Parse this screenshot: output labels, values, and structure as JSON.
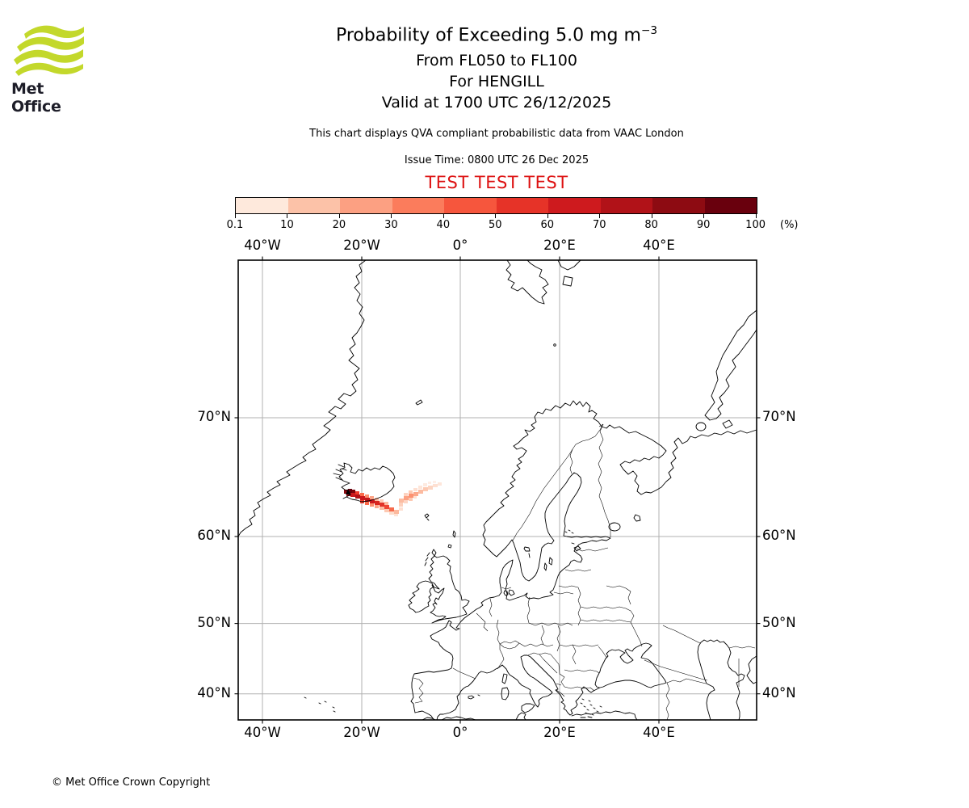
{
  "logo": {
    "brand": "Met Office",
    "wave_color": "#c3d82b",
    "text_color": "#1d1d28"
  },
  "header": {
    "title_main": "Probability of Exceeding 5.0 mg m",
    "title_sup": "−3",
    "subtitle_lines": [
      "From FL050 to FL100",
      "For HENGILL",
      "Valid at 1700 UTC 26/12/2025"
    ],
    "description": "This chart displays QVA compliant probabilistic data from VAAC London",
    "issue_time": "Issue Time: 0800 UTC 26 Dec 2025",
    "test_banner": "TEST TEST TEST",
    "test_color": "#dd1111"
  },
  "colorbar": {
    "tick_labels": [
      "0.1",
      "10",
      "20",
      "30",
      "40",
      "50",
      "60",
      "70",
      "80",
      "90",
      "100"
    ],
    "unit": "(%)",
    "colors": [
      "#fee9dc",
      "#fcc2a8",
      "#fca082",
      "#fb7c5c",
      "#f6563d",
      "#e63328",
      "#ce1a1e",
      "#b11218",
      "#8d0b12",
      "#69000d"
    ]
  },
  "map": {
    "x_tick_labels": [
      "40°W",
      "20°W",
      "0°",
      "20°E",
      "40°E"
    ],
    "y_tick_labels": [
      "70°N",
      "60°N",
      "50°N",
      "40°N"
    ],
    "grid_color": "#b0b0b0"
  },
  "footer": {
    "copyright": "© Met Office Crown Copyright"
  },
  "chart_data": {
    "type": "heatmap",
    "title": "Probability of Exceeding 5.0 mg m⁻³",
    "layer": "From FL050 to FL100",
    "volcano": "HENGILL",
    "valid_time": "1700 UTC 26/12/2025",
    "issue_time": "0800 UTC 26 Dec 2025",
    "source": "VAAC London QVA compliant probabilistic data",
    "probability_bin_edges_percent": [
      0.1,
      10,
      20,
      30,
      40,
      50,
      60,
      70,
      80,
      90,
      100
    ],
    "bin_colors": [
      "#fee9dc",
      "#fcc2a8",
      "#fca082",
      "#fb7c5c",
      "#f6563d",
      "#e63328",
      "#ce1a1e",
      "#b11218",
      "#8d0b12",
      "#69000d"
    ],
    "projection": "Mercator",
    "map_extent": {
      "lon_min": -44.7,
      "lon_max": 59.7,
      "lat_min": 35.9,
      "lat_max": 78.4
    },
    "x_ticks_deg": [
      -40,
      -20,
      0,
      20,
      40
    ],
    "y_ticks_deg": [
      70,
      60,
      50,
      40
    ],
    "plume_summary": "High probabilities (up to 90-100%) at source in SW Iceland (Hengill), dark red streak extending ESE over the ocean, lighter 10-40% arc extending ENE toward ~8W 64N",
    "plume_cells": [
      [
        131,
        284,
        5,
        5,
        "#8a0a10"
      ],
      [
        136,
        283,
        5,
        5,
        "#67000d"
      ],
      [
        141,
        284,
        4,
        5,
        "#7c040b"
      ],
      [
        134,
        288,
        5,
        4,
        "#a50f15"
      ],
      [
        139,
        288,
        6,
        5,
        "#cb181d"
      ],
      [
        145,
        290,
        6,
        5,
        "#b01218"
      ],
      [
        151,
        292,
        6,
        5,
        "#cb181d"
      ],
      [
        157,
        294,
        6,
        5,
        "#c2161b"
      ],
      [
        163,
        296,
        6,
        5,
        "#cb181d"
      ],
      [
        169,
        298,
        6,
        5,
        "#d9261f"
      ],
      [
        175,
        300,
        6,
        5,
        "#e23328"
      ],
      [
        181,
        303,
        6,
        5,
        "#ef4533"
      ],
      [
        187,
        306,
        6,
        5,
        "#f66b4d"
      ],
      [
        145,
        286,
        5,
        4,
        "#ef3b2c"
      ],
      [
        151,
        288,
        5,
        4,
        "#fb6a4a"
      ],
      [
        157,
        290,
        5,
        4,
        "#fc8d6d"
      ],
      [
        163,
        292,
        5,
        4,
        "#fca588"
      ],
      [
        169,
        294,
        5,
        4,
        "#fcbba1"
      ],
      [
        175,
        296,
        5,
        4,
        "#fdccb8"
      ],
      [
        181,
        299,
        5,
        4,
        "#fcbba1"
      ],
      [
        151,
        297,
        5,
        4,
        "#ef3b2c"
      ],
      [
        157,
        299,
        5,
        4,
        "#fb6a4a"
      ],
      [
        163,
        301,
        5,
        4,
        "#fc8d6d"
      ],
      [
        169,
        303,
        5,
        4,
        "#fca588"
      ],
      [
        175,
        305,
        6,
        4,
        "#fcbba1"
      ],
      [
        181,
        308,
        6,
        4,
        "#fdc9b2"
      ],
      [
        187,
        311,
        6,
        4,
        "#fddcca"
      ],
      [
        193,
        309,
        6,
        5,
        "#fcb99e"
      ],
      [
        193,
        314,
        5,
        3,
        "#fee3d5"
      ],
      [
        199,
        306,
        5,
        4,
        "#fee0d2"
      ],
      [
        199,
        300,
        5,
        5,
        "#fdd0bc"
      ],
      [
        199,
        295,
        6,
        5,
        "#fcbba1"
      ],
      [
        205,
        292,
        6,
        5,
        "#fca183"
      ],
      [
        211,
        289,
        6,
        5,
        "#fc9272"
      ],
      [
        217,
        287,
        6,
        5,
        "#fca78a"
      ],
      [
        223,
        284,
        6,
        5,
        "#fcbba1"
      ],
      [
        229,
        281,
        6,
        5,
        "#fdc9b2"
      ],
      [
        235,
        279,
        6,
        5,
        "#fdd5c2"
      ],
      [
        241,
        277,
        6,
        4,
        "#fee0d2"
      ],
      [
        247,
        275,
        5,
        4,
        "#fee6da"
      ],
      [
        205,
        288,
        5,
        4,
        "#fdd3c1"
      ],
      [
        211,
        285,
        5,
        4,
        "#fdc9b2"
      ],
      [
        217,
        282,
        5,
        4,
        "#fee0d2"
      ],
      [
        223,
        279,
        5,
        4,
        "#fee5d8"
      ],
      [
        229,
        276,
        5,
        4,
        "#feeae0"
      ],
      [
        205,
        297,
        5,
        4,
        "#fdd5c4"
      ],
      [
        211,
        294,
        5,
        4,
        "#fdc9b2"
      ],
      [
        217,
        292,
        4,
        3,
        "#fee0d2"
      ],
      [
        235,
        274,
        4,
        3,
        "#feede5"
      ],
      [
        241,
        273,
        4,
        3,
        "#feefe8"
      ]
    ]
  }
}
